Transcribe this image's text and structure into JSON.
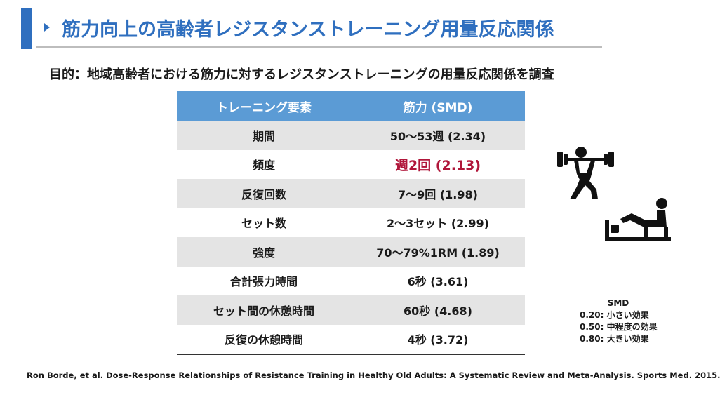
{
  "title": "筋力向上の高齢者レジスタンストレーニング用量反応関係",
  "subtitle": "目的：地域高齢者における筋力に対するレジスタンストレーニングの用量反応関係を調査",
  "table": {
    "headers": [
      "トレーニング要素",
      "筋力 (SMD)"
    ],
    "rows": [
      {
        "element": "期間",
        "value": "50〜53週 (2.34)"
      },
      {
        "element": "頻度",
        "value": "週2回 (2.13)"
      },
      {
        "element": "反復回数",
        "value": "7〜9回 (1.98)"
      },
      {
        "element": "セット数",
        "value": "2〜3セット (2.99)"
      },
      {
        "element": "強度",
        "value": "70〜79%1RM (1.89)"
      },
      {
        "element": "合計張力時間",
        "value": "6秒 (3.61)"
      },
      {
        "element": "セット間の休憩時間",
        "value": "60秒 (4.68)"
      },
      {
        "element": "反復の休憩時間",
        "value": "4秒 (3.72)"
      }
    ]
  },
  "legend": {
    "title": "SMD",
    "items": [
      "0.20: 小さい効果",
      "0.50: 中程度の効果",
      "0.80: 大きい効果"
    ]
  },
  "citation": "Ron Borde, et al. Dose-Response Relationships of Resistance Training in Healthy Old Adults: A Systematic Review and Meta-Analysis. Sports Med. 2015.",
  "colors": {
    "accent": "#2f6fbf",
    "header_fill": "#5b9bd5",
    "highlight": "#b0163a",
    "row_shade": "#e4e4e4"
  },
  "icons": [
    "weightlifter-icon",
    "leg-press-icon"
  ]
}
